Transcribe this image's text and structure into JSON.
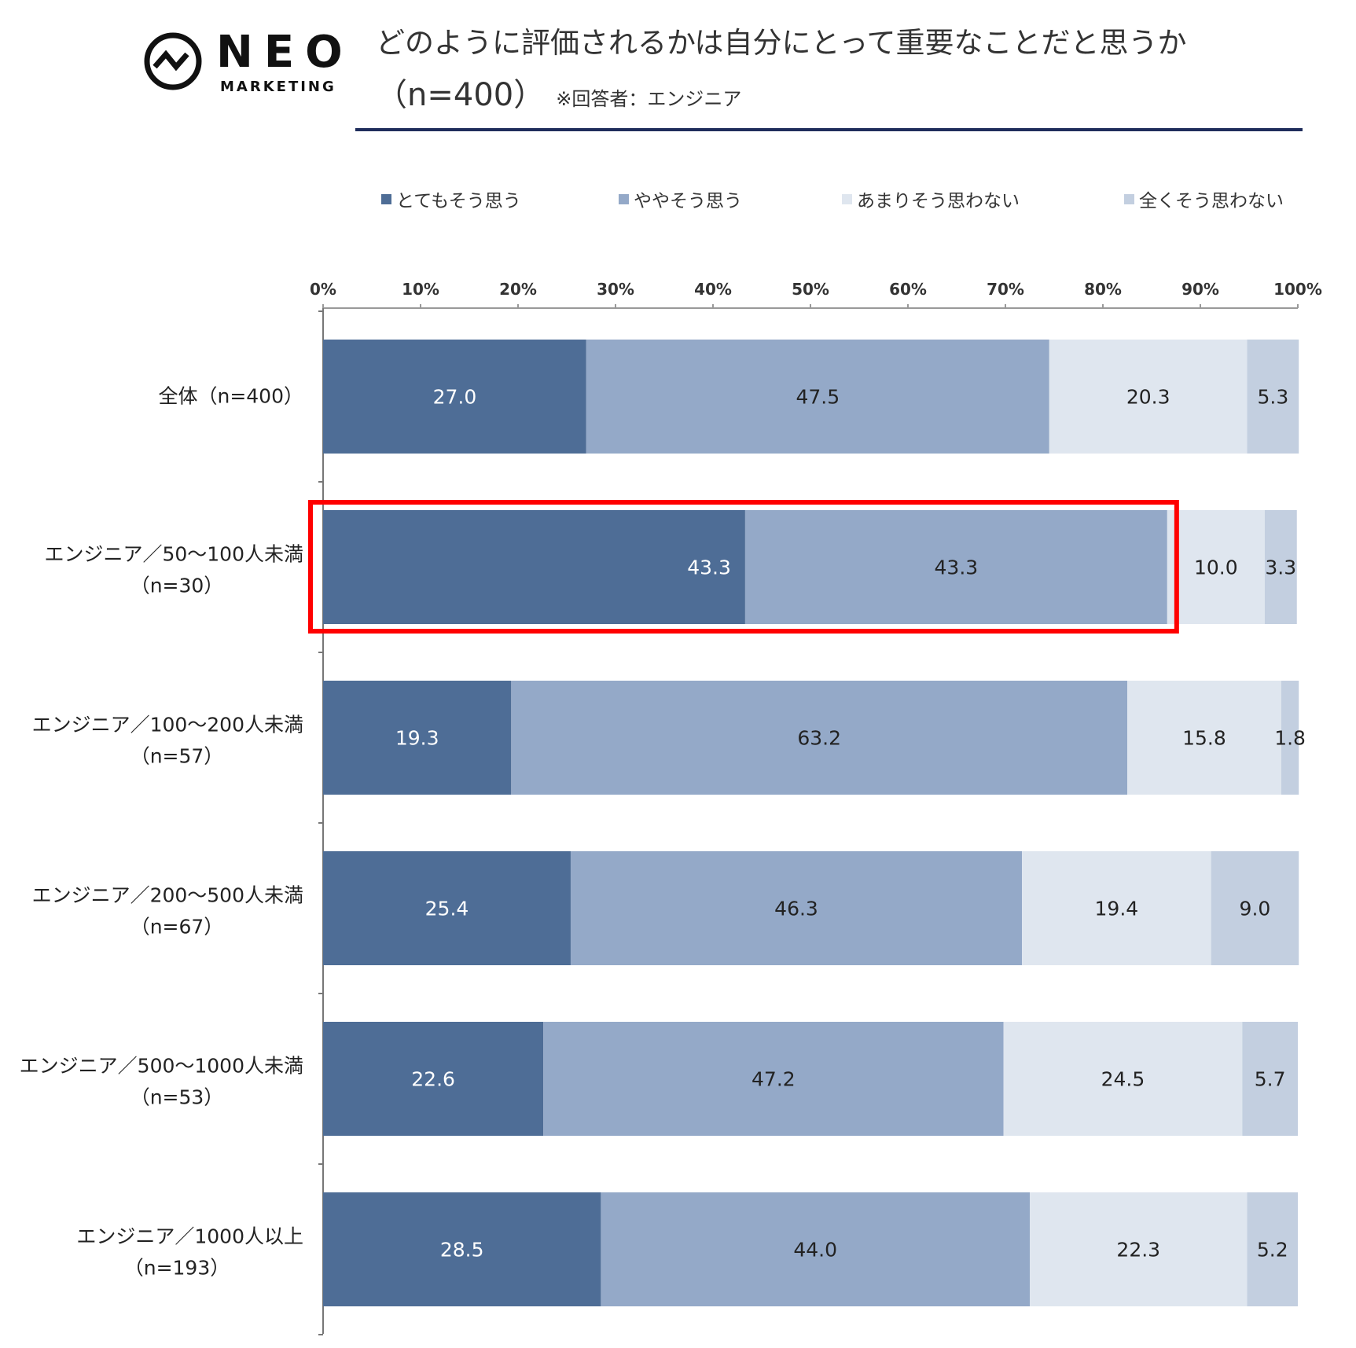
{
  "logo": {
    "word": "NEO",
    "sub": "MARKETING"
  },
  "title": {
    "line1": "どのように評価されるかは自分にとって重要なことだと思うか",
    "line2": "（n=400）",
    "note": "※回答者：エンジニア"
  },
  "colors": {
    "c1": "#4e6d96",
    "c2": "#94a9c8",
    "c3": "#dfe6ef",
    "c4": "#c3cfe0",
    "highlight": "#ff0000",
    "rule": "#1f2d5c"
  },
  "legend": [
    {
      "label": "とてもそう思う",
      "color": "#4e6d96"
    },
    {
      "label": "ややそう思う",
      "color": "#94a9c8"
    },
    {
      "label": "あまりそう思わない",
      "color": "#dfe6ef"
    },
    {
      "label": "全くそう思わない",
      "color": "#c3cfe0"
    }
  ],
  "chart_data": {
    "type": "bar",
    "orientation": "horizontal",
    "stacked": true,
    "title": "どのように評価されるかは自分にとって重要なことだと思うか（n=400）",
    "xlim": [
      0,
      100
    ],
    "x_ticks": [
      "0%",
      "10%",
      "20%",
      "30%",
      "40%",
      "50%",
      "60%",
      "70%",
      "80%",
      "90%",
      "100%"
    ],
    "categories": [
      [
        "全体（n=400）"
      ],
      [
        "エンジニア／50～100人未満",
        "（n=30）"
      ],
      [
        "エンジニア／100～200人未満",
        "（n=57）"
      ],
      [
        "エンジニア／200～500人未満",
        "（n=67）"
      ],
      [
        "エンジニア／500～1000人未満",
        "（n=53）"
      ],
      [
        "エンジニア／1000人以上",
        "（n=193）"
      ]
    ],
    "series": [
      {
        "name": "とてもそう思う",
        "values": [
          27.0,
          43.3,
          19.3,
          25.4,
          22.6,
          28.5
        ],
        "labels": [
          "27.0",
          "43.3",
          "19.3",
          "25.4",
          "22.6",
          "28.5"
        ]
      },
      {
        "name": "ややそう思う",
        "values": [
          47.5,
          43.3,
          63.2,
          46.3,
          47.2,
          44.0
        ],
        "labels": [
          "47.5",
          "43.3",
          "63.2",
          "46.3",
          "47.2",
          "44.0"
        ]
      },
      {
        "name": "あまりそう思わない",
        "values": [
          20.3,
          10.0,
          15.8,
          19.4,
          24.5,
          22.3
        ],
        "labels": [
          "20.3",
          "10.0",
          "15.8",
          "19.4",
          "24.5",
          "22.3"
        ]
      },
      {
        "name": "全くそう思わない",
        "values": [
          5.3,
          3.3,
          1.8,
          9.0,
          5.7,
          5.2
        ],
        "labels": [
          "5.3",
          "3.3",
          "1.8",
          "9.0",
          "5.7",
          "5.2"
        ]
      }
    ],
    "highlight_row": 1
  }
}
